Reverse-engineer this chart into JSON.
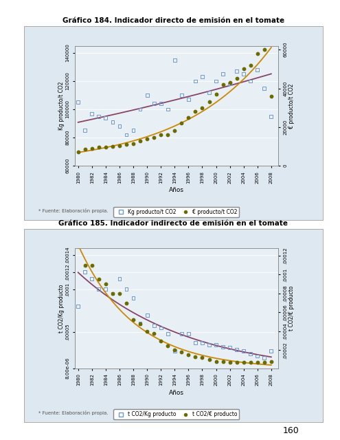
{
  "chart1": {
    "title": "Gráfico 184. Indicador directo de emisión en el tomate",
    "xlabel": "Años",
    "ylabel_left": "Kg producto/t CO2",
    "ylabel_right": "€ producto/t CO2",
    "kg_data": [
      [
        1980,
        105000
      ],
      [
        1981,
        85000
      ],
      [
        1982,
        97000
      ],
      [
        1983,
        95000
      ],
      [
        1984,
        94000
      ],
      [
        1985,
        91000
      ],
      [
        1986,
        88000
      ],
      [
        1987,
        82000
      ],
      [
        1988,
        85000
      ],
      [
        1989,
        100000
      ],
      [
        1990,
        110000
      ],
      [
        1991,
        104000
      ],
      [
        1992,
        104000
      ],
      [
        1993,
        100000
      ],
      [
        1994,
        135000
      ],
      [
        1995,
        110000
      ],
      [
        1996,
        107000
      ],
      [
        1997,
        120000
      ],
      [
        1998,
        123000
      ],
      [
        1999,
        112000
      ],
      [
        2000,
        120000
      ],
      [
        2001,
        125000
      ],
      [
        2002,
        118000
      ],
      [
        2003,
        127000
      ],
      [
        2004,
        125000
      ],
      [
        2005,
        120000
      ],
      [
        2006,
        128000
      ],
      [
        2007,
        115000
      ],
      [
        2008,
        95000
      ]
    ],
    "eur_data": [
      [
        1980,
        7000
      ],
      [
        1981,
        8500
      ],
      [
        1982,
        9000
      ],
      [
        1983,
        9500
      ],
      [
        1984,
        9500
      ],
      [
        1985,
        10000
      ],
      [
        1986,
        10500
      ],
      [
        1987,
        11000
      ],
      [
        1988,
        11500
      ],
      [
        1989,
        13000
      ],
      [
        1990,
        14000
      ],
      [
        1991,
        14500
      ],
      [
        1992,
        16000
      ],
      [
        1993,
        16000
      ],
      [
        1994,
        18000
      ],
      [
        1995,
        22000
      ],
      [
        1996,
        25000
      ],
      [
        1997,
        28000
      ],
      [
        1998,
        30000
      ],
      [
        1999,
        33000
      ],
      [
        2000,
        37000
      ],
      [
        2001,
        42000
      ],
      [
        2002,
        43000
      ],
      [
        2003,
        45000
      ],
      [
        2004,
        50000
      ],
      [
        2005,
        52000
      ],
      [
        2006,
        58000
      ],
      [
        2007,
        60000
      ],
      [
        2008,
        36000
      ]
    ],
    "ylim_left": [
      60000,
      145000
    ],
    "ylim_right": [
      0,
      62000
    ],
    "yticks_left": [
      60000,
      80000,
      100000,
      120000,
      140000
    ],
    "ytick_labels_left": [
      "60000",
      "80000",
      "100000",
      "120000",
      "140000"
    ],
    "yticks_right": [
      0,
      20000,
      40000,
      60000
    ],
    "ytick_labels_right": [
      "0",
      "20000",
      "40000",
      "60000"
    ],
    "xticks": [
      1980,
      1982,
      1984,
      1986,
      1988,
      1990,
      1992,
      1994,
      1996,
      1998,
      2000,
      2002,
      2004,
      2006,
      2008
    ],
    "color_sq": "#7098c8",
    "color_dot": "#6b6b00",
    "trend_color_sq": "#884466",
    "trend_color_dot": "#cc8800",
    "legend_labels": [
      "Kg producto/t CO2",
      "€ producto/t CO2"
    ],
    "source": "* Fuente: Elaboración propia."
  },
  "chart2": {
    "title": "Gráfico 185. Indicador indirecto de emisión en el tomate",
    "xlabel": "Años",
    "ylabel_left": "t CO2/Kg producto",
    "ylabel_right": "t CO2/€ producto",
    "kg_data": [
      [
        1980,
        8e-05
      ],
      [
        1981,
        0.00012
      ],
      [
        1982,
        0.000112
      ],
      [
        1983,
        0.0001
      ],
      [
        1984,
        0.0001
      ],
      [
        1985,
        9.5e-05
      ],
      [
        1986,
        0.000112
      ],
      [
        1987,
        0.0001
      ],
      [
        1988,
        9e-05
      ],
      [
        1989,
        6e-05
      ],
      [
        1990,
        7e-05
      ],
      [
        1991,
        5.8e-05
      ],
      [
        1992,
        5.5e-05
      ],
      [
        1993,
        4.8e-05
      ],
      [
        1994,
        2.8e-05
      ],
      [
        1995,
        4.8e-05
      ],
      [
        1996,
        4.8e-05
      ],
      [
        1997,
        3.8e-05
      ],
      [
        1998,
        3.8e-05
      ],
      [
        1999,
        3.5e-05
      ],
      [
        2000,
        3.5e-05
      ],
      [
        2001,
        3.3e-05
      ],
      [
        2002,
        3.2e-05
      ],
      [
        2003,
        3e-05
      ],
      [
        2004,
        2.8e-05
      ],
      [
        2005,
        2.5e-05
      ],
      [
        2006,
        2.2e-05
      ],
      [
        2007,
        2e-05
      ],
      [
        2008,
        2.8e-05
      ]
    ],
    "eur_data": [
      [
        1980,
        0.00013
      ],
      [
        1981,
        0.00011
      ],
      [
        1982,
        0.00011
      ],
      [
        1983,
        9.5e-05
      ],
      [
        1984,
        9e-05
      ],
      [
        1985,
        8e-05
      ],
      [
        1986,
        8e-05
      ],
      [
        1987,
        7e-05
      ],
      [
        1988,
        5.2e-05
      ],
      [
        1989,
        4.8e-05
      ],
      [
        1990,
        4e-05
      ],
      [
        1991,
        3.8e-05
      ],
      [
        1992,
        3e-05
      ],
      [
        1993,
        2.5e-05
      ],
      [
        1994,
        2e-05
      ],
      [
        1995,
        1.8e-05
      ],
      [
        1996,
        1.5e-05
      ],
      [
        1997,
        1.3e-05
      ],
      [
        1998,
        1.2e-05
      ],
      [
        1999,
        1e-05
      ],
      [
        2000,
        8e-06
      ],
      [
        2001,
        8e-06
      ],
      [
        2002,
        7e-06
      ],
      [
        2003,
        7e-06
      ],
      [
        2004,
        7e-06
      ],
      [
        2005,
        7e-06
      ],
      [
        2006,
        7e-06
      ],
      [
        2007,
        7e-06
      ],
      [
        2008,
        8e-06
      ]
    ],
    "ylim_left": [
      8e-06,
      0.000148
    ],
    "ylim_right": [
      1e-06,
      0.000128
    ],
    "yticks_left": [
      8e-06,
      5e-05,
      0.0001,
      0.00012,
      0.00014
    ],
    "ytick_labels_left": [
      "8.00e-06",
      ".00005",
      ".0001",
      ".00012",
      ".00014"
    ],
    "yticks_right": [
      2e-05,
      4e-05,
      6e-05,
      8e-05,
      0.0001,
      0.00012
    ],
    "ytick_labels_right": [
      ".00002",
      ".00004",
      ".00006",
      ".00008",
      ".0001",
      ".00012"
    ],
    "xticks": [
      1980,
      1982,
      1984,
      1986,
      1988,
      1990,
      1992,
      1994,
      1996,
      1998,
      2000,
      2002,
      2004,
      2006,
      2008
    ],
    "color_sq": "#7098c8",
    "color_dot": "#6b6b00",
    "trend_color_sq": "#884466",
    "trend_color_dot": "#cc8800",
    "legend_labels": [
      "t CO2/Kg producto",
      "t CO2/€ producto"
    ],
    "source": "* Fuente: Elaboración propia."
  },
  "page_number": "160",
  "page_bg": "#ffffff",
  "panel_bg": "#dde8f0",
  "plot_bg": "#e8eff5"
}
